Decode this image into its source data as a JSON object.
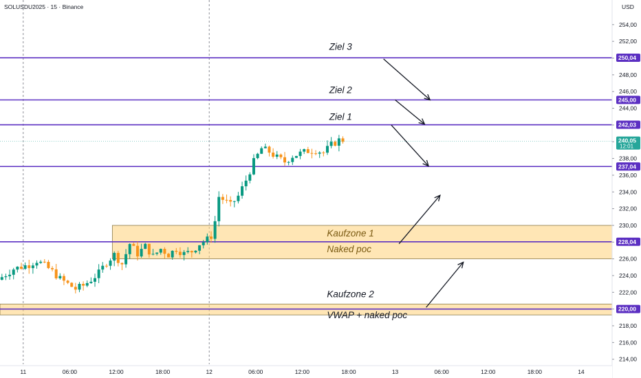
{
  "chart_data": {
    "type": "candlestick",
    "title": "SOLUSDU2025 · 15 · Binance",
    "currency": "USD",
    "ylim": [
      213.4,
      255.3
    ],
    "y_ticks": [
      "214,00",
      "216,00",
      "218,00",
      "220,00",
      "222,00",
      "224,00",
      "226,00",
      "228,00",
      "230,00",
      "232,00",
      "234,00",
      "236,00",
      "238,00",
      "240,00",
      "242,00",
      "244,00",
      "246,00",
      "248,00",
      "250,00",
      "252,00",
      "254,00"
    ],
    "x_ticks": [
      {
        "label": "11",
        "t": 0
      },
      {
        "label": "06:00",
        "t": 6
      },
      {
        "label": "12:00",
        "t": 12
      },
      {
        "label": "18:00",
        "t": 18
      },
      {
        "label": "12",
        "t": 24
      },
      {
        "label": "06:00",
        "t": 30
      },
      {
        "label": "12:00",
        "t": 36
      },
      {
        "label": "18:00",
        "t": 42
      },
      {
        "label": "13",
        "t": 48
      },
      {
        "label": "06:00",
        "t": 54
      },
      {
        "label": "12:00",
        "t": 60
      },
      {
        "label": "18:00",
        "t": 66
      },
      {
        "label": "14",
        "t": 72
      }
    ],
    "x_range_hours": [
      -3,
      76
    ],
    "day_separators": [
      0,
      24
    ],
    "price_path": [
      [
        -3,
        223.5
      ],
      [
        -1,
        224.8
      ],
      [
        1,
        225.3
      ],
      [
        2,
        225.8
      ],
      [
        3,
        225.2
      ],
      [
        4,
        224.5
      ],
      [
        5,
        223.6
      ],
      [
        6,
        223.0
      ],
      [
        7,
        222.4
      ],
      [
        8,
        222.8
      ],
      [
        9,
        223.5
      ],
      [
        10,
        224.3
      ],
      [
        11,
        225.6
      ],
      [
        12,
        226.5
      ],
      [
        13,
        225.4
      ],
      [
        14,
        227.8
      ],
      [
        15,
        226.6
      ],
      [
        16,
        227.5
      ],
      [
        17,
        226.3
      ],
      [
        18,
        227.2
      ],
      [
        19,
        226.5
      ],
      [
        20,
        227.2
      ],
      [
        21,
        226.6
      ],
      [
        22,
        226.9
      ],
      [
        23,
        227.8
      ],
      [
        24,
        228.3
      ],
      [
        24.8,
        229.0
      ],
      [
        25.4,
        233.5
      ],
      [
        26.2,
        233.0
      ],
      [
        27,
        232.4
      ],
      [
        28,
        233.5
      ],
      [
        29,
        235.4
      ],
      [
        30,
        237.6
      ],
      [
        31,
        239.2
      ],
      [
        32,
        238.8
      ],
      [
        33,
        238.1
      ],
      [
        34,
        237.6
      ],
      [
        35,
        238.3
      ],
      [
        36,
        238.6
      ],
      [
        37,
        238.9
      ],
      [
        38,
        239.0
      ],
      [
        39,
        238.7
      ],
      [
        40,
        239.6
      ],
      [
        41,
        240.2
      ]
    ],
    "horizontal_levels": [
      {
        "name": "Ziel 3",
        "value": 250.04,
        "label": "250,04"
      },
      {
        "name": "Ziel 2",
        "value": 245.0,
        "label": "245,00"
      },
      {
        "name": "Ziel 1",
        "value": 242.03,
        "label": "242,03"
      },
      {
        "value": 237.04,
        "label": "237,04"
      },
      {
        "value": 228.04,
        "label": "228,04"
      },
      {
        "value": 220.0,
        "label": "220,00"
      }
    ],
    "last_price": {
      "value": 240.05,
      "label": "240,05",
      "countdown": "12:01"
    },
    "zones": [
      {
        "name": "Kaufzone 1",
        "low": 226.0,
        "high": 230.0,
        "t_start": 11.5
      },
      {
        "name": "Kaufzone 2",
        "low": 219.3,
        "high": 220.6,
        "t_start": -3
      }
    ],
    "annotations": [
      {
        "text": "Ziel 3",
        "t": 39.5,
        "price": 251.0,
        "color": "#131722"
      },
      {
        "text": "Ziel 2",
        "t": 39.5,
        "price": 245.8,
        "color": "#131722"
      },
      {
        "text": "Ziel 1",
        "t": 39.5,
        "price": 242.6,
        "color": "#131722"
      },
      {
        "text": "Kaufzone 1",
        "t": 39.2,
        "price": 228.7,
        "color": "#7a5a12"
      },
      {
        "text": "Naked poc",
        "t": 39.2,
        "price": 226.8,
        "color": "#7a5a12"
      },
      {
        "text": "Kaufzone 2",
        "t": 39.2,
        "price": 221.4,
        "color": "#131722"
      },
      {
        "text": "VWAP + naked poc",
        "t": 39.2,
        "price": 218.9,
        "color": "#131722"
      }
    ],
    "arrows": [
      {
        "from": [
          46.5,
          249.9
        ],
        "to": [
          52.5,
          245.0
        ]
      },
      {
        "from": [
          48.0,
          245.0
        ],
        "to": [
          51.8,
          242.1
        ]
      },
      {
        "from": [
          47.5,
          242.0
        ],
        "to": [
          52.3,
          237.1
        ]
      },
      {
        "from": [
          48.5,
          227.8
        ],
        "to": [
          53.8,
          233.6
        ]
      },
      {
        "from": [
          52.0,
          220.2
        ],
        "to": [
          56.8,
          225.6
        ]
      }
    ]
  }
}
